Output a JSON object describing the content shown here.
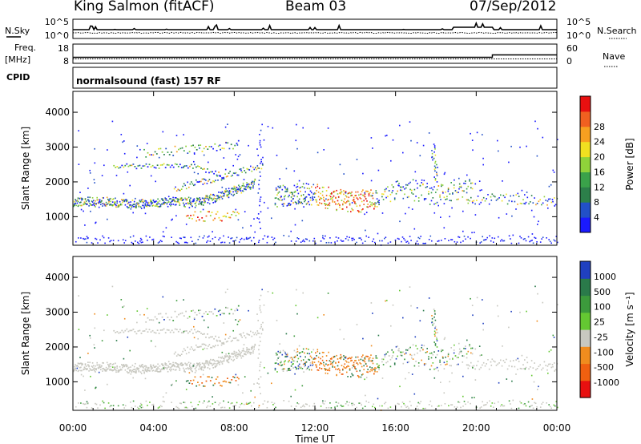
{
  "header": {
    "station": "King Salmon (fitACF)",
    "beam": "Beam 03",
    "date": "07/Sep/2012"
  },
  "strips": {
    "nsky_label": "N.Sky",
    "nsearch_label": "N.Search",
    "noise_ticks_left": [
      "10^5",
      "10^0"
    ],
    "noise_ticks_right": [
      "10^5",
      "10^0"
    ],
    "freq_label_1": "Freq.",
    "freq_label_2": "[MHz]",
    "freq_ticks": [
      "18",
      "8"
    ],
    "nave_label": "Nave",
    "nave_ticks": [
      "60",
      "0"
    ],
    "cpid_label": "CPID",
    "cpid_text": "normalsound (fast) 157 RF"
  },
  "chart_data": [
    {
      "type": "heatmap",
      "title": "",
      "ylabel": "Slant Range [km]",
      "xlabel": "",
      "ylim": [
        180,
        4600
      ],
      "xlim": [
        "00:00",
        "24:00"
      ],
      "yticks": [
        "1000",
        "2000",
        "3000",
        "4000"
      ],
      "xticks": [
        "00:00",
        "04:00",
        "08:00",
        "12:00",
        "16:00",
        "20:00",
        "00:00"
      ],
      "colorbar": {
        "label": "Power [dB]",
        "ticks": [
          "4",
          "8",
          "12",
          "16",
          "20",
          "24",
          "28"
        ],
        "colors": [
          "#1a1aff",
          "#2250c8",
          "#2c7f4a",
          "#3aa24a",
          "#8fd23a",
          "#f0e020",
          "#f7a020",
          "#f06020",
          "#e81010"
        ]
      }
    },
    {
      "type": "heatmap",
      "title": "",
      "ylabel": "Slant Range [km]",
      "xlabel": "Time UT",
      "ylim": [
        180,
        4600
      ],
      "xlim": [
        "00:00",
        "24:00"
      ],
      "yticks": [
        "1000",
        "2000",
        "3000",
        "4000"
      ],
      "xticks": [
        "00:00",
        "04:00",
        "08:00",
        "12:00",
        "16:00",
        "20:00",
        "00:00"
      ],
      "colorbar": {
        "label": "Velocity [m s⁻¹]",
        "ticks": [
          "1000",
          "500",
          "100",
          "25",
          "-25",
          "-100",
          "-500",
          "-1000"
        ],
        "colors": [
          "#2040c0",
          "#2a7a4a",
          "#3c9a3c",
          "#64c832",
          "#c8c8c0",
          "#f08c1e",
          "#f06010",
          "#e81010"
        ]
      }
    }
  ],
  "colors": {
    "power_ground": "#1a1aff",
    "velocity_ground": "#c8c8c0",
    "axis": "#000000"
  }
}
